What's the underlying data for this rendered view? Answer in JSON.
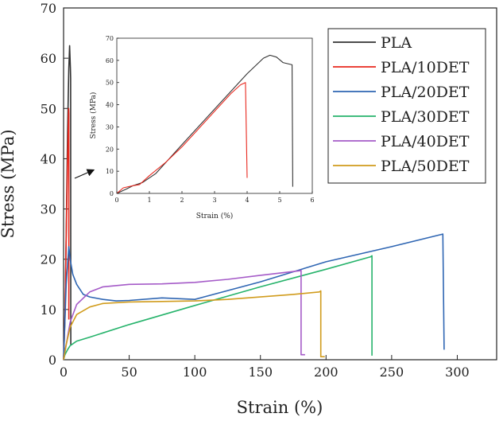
{
  "chart_data": [
    {
      "type": "line",
      "xlabel": "Strain (%)",
      "ylabel": "Stress (MPa)",
      "xlim": [
        0,
        330
      ],
      "ylim": [
        0,
        70
      ],
      "xticks": [
        0,
        50,
        100,
        150,
        200,
        250,
        300
      ],
      "yticks": [
        0,
        10,
        20,
        30,
        40,
        50,
        60,
        70
      ],
      "grid": false,
      "legend_position": "top-right",
      "series": [
        {
          "name": "PLA",
          "color": "#333333",
          "x": [
            0,
            1,
            2,
            3,
            4,
            4.6,
            5.2,
            5.4,
            5.5
          ],
          "y": [
            0,
            8,
            25,
            45,
            58,
            62.5,
            58,
            56,
            3
          ]
        },
        {
          "name": "PLA/10DET",
          "color": "#e8281e",
          "x": [
            0,
            1,
            2,
            3,
            3.9,
            4.0,
            4.0
          ],
          "y": [
            0,
            9,
            24,
            40,
            50,
            49,
            8
          ]
        },
        {
          "name": "PLA/20DET",
          "color": "#2f66b3",
          "x": [
            0,
            2,
            4,
            5,
            7,
            10,
            15,
            20,
            30,
            40,
            50,
            75,
            100,
            150,
            200,
            250,
            289,
            290
          ],
          "y": [
            0,
            15,
            22.5,
            20,
            17,
            15,
            13,
            12.5,
            12,
            11.7,
            11.8,
            12.3,
            12,
            15.5,
            19.5,
            22.5,
            25,
            2
          ]
        },
        {
          "name": "PLA/30DET",
          "color": "#26b36b",
          "x": [
            0,
            1,
            3,
            5,
            10,
            20,
            50,
            100,
            150,
            200,
            234,
            235,
            235
          ],
          "y": [
            0,
            1,
            2,
            2.8,
            3.7,
            4.5,
            7,
            10.8,
            14.5,
            18,
            20.5,
            20.7,
            0.8
          ]
        },
        {
          "name": "PLA/40DET",
          "color": "#a55bc8",
          "x": [
            0,
            2,
            5,
            10,
            20,
            30,
            50,
            75,
            100,
            125,
            150,
            180,
            181,
            181,
            184
          ],
          "y": [
            0,
            3,
            7.5,
            11,
            13.5,
            14.5,
            15,
            15.1,
            15.4,
            16,
            16.8,
            17.7,
            17.8,
            1,
            1
          ]
        },
        {
          "name": "PLA/50DET",
          "color": "#d19c1d",
          "x": [
            0,
            2,
            5,
            10,
            20,
            30,
            50,
            75,
            100,
            125,
            150,
            175,
            195,
            196,
            196,
            199
          ],
          "y": [
            0,
            3,
            6.5,
            9,
            10.5,
            11.2,
            11.5,
            11.6,
            11.7,
            12,
            12.5,
            13,
            13.5,
            13.7,
            0.6,
            0.6
          ]
        }
      ]
    },
    {
      "type": "line",
      "role": "inset",
      "xlabel": "Strain (%)",
      "ylabel": "Stress (MPa)",
      "xlim": [
        0,
        6
      ],
      "ylim": [
        0,
        70
      ],
      "xticks": [
        0,
        1,
        2,
        3,
        4,
        5,
        6
      ],
      "yticks": [
        0,
        10,
        20,
        30,
        40,
        50,
        60,
        70
      ],
      "grid": false,
      "series": [
        {
          "name": "PLA",
          "color": "#333333",
          "x": [
            0,
            0.3,
            0.5,
            0.8,
            1.2,
            2,
            3,
            4,
            4.5,
            4.7,
            4.9,
            5.1,
            5.38,
            5.4
          ],
          "y": [
            0,
            2,
            3.5,
            5,
            9,
            22,
            38,
            54,
            61,
            62.3,
            61.5,
            59,
            58,
            3
          ]
        },
        {
          "name": "PLA/10DET",
          "color": "#e8281e",
          "x": [
            0,
            0.2,
            0.35,
            0.5,
            0.7,
            1,
            1.5,
            2,
            2.5,
            3,
            3.5,
            3.8,
            3.95,
            4.0
          ],
          "y": [
            0,
            2.5,
            3,
            3.5,
            4,
            8,
            14,
            21,
            29,
            37,
            45,
            49,
            50,
            7
          ]
        }
      ]
    }
  ]
}
